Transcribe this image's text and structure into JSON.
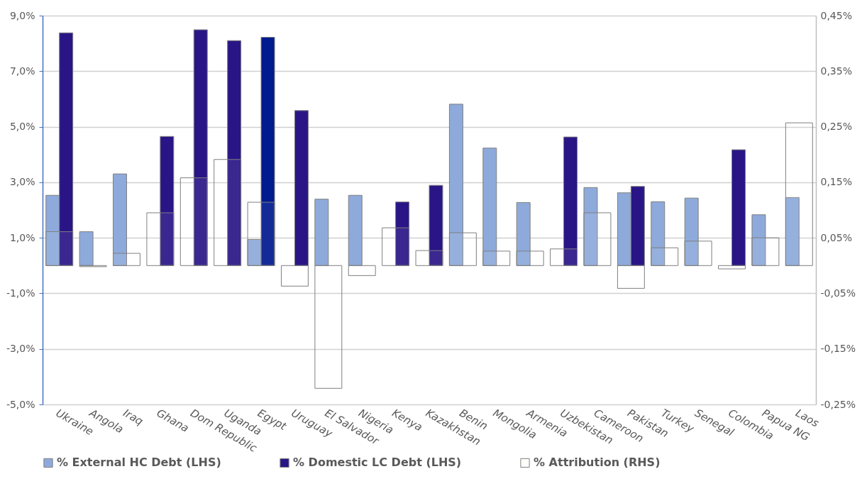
{
  "chart_data": {
    "type": "bar",
    "categories": [
      "Ukraine",
      "Angola",
      "Iraq",
      "Ghana",
      "Dom Republic",
      "Uganda",
      "Egypt",
      "Uruguay",
      "El Salvador",
      "Nigeria",
      "Kenya",
      "Kazakhstan",
      "Benin",
      "Mongolia",
      "Armenia",
      "Uzbekistan",
      "Cameroon",
      "Pakistan",
      "Turkey",
      "Senegal",
      "Colombia",
      "Papua NG",
      "Laos"
    ],
    "series": [
      {
        "name": "% External HC Debt (LHS)",
        "color": "#8eaadb",
        "values": [
          2.53,
          1.22,
          3.3,
          null,
          null,
          null,
          0.94,
          null,
          2.39,
          2.53,
          null,
          null,
          5.81,
          4.23,
          2.27,
          null,
          2.81,
          2.62,
          2.3,
          2.43,
          null,
          1.83,
          2.45
        ]
      },
      {
        "name": "% Domestic LC Debt (LHS)",
        "color": "#2a1587",
        "colors": [
          "#2a1587",
          "#2a1587",
          "#2a1587",
          "#2a1587",
          "#2a1587",
          "#2a1587",
          "#001a8f",
          "#2a1587",
          "#2a1587",
          "#2a1587",
          "#2a1587",
          "#2a1587",
          "#2a1587",
          "#2a1587",
          "#2a1587",
          "#2a1587",
          "#2a1587",
          "#2a1587",
          "#2a1587",
          "#2a1587",
          "#2a1587",
          "#2a1587",
          "#2a1587"
        ],
        "values": [
          8.38,
          null,
          null,
          4.65,
          8.49,
          8.1,
          8.22,
          5.58,
          null,
          null,
          2.29,
          2.89,
          null,
          null,
          null,
          4.63,
          null,
          2.85,
          null,
          null,
          4.17,
          null,
          null
        ]
      },
      {
        "name": "% Attribution (RHS)",
        "color": "#fffdfa",
        "axis": "y2",
        "values": [
          0.061,
          -0.002,
          0.022,
          0.095,
          0.158,
          0.191,
          0.114,
          -0.037,
          -0.221,
          -0.018,
          0.068,
          0.027,
          0.059,
          0.026,
          0.026,
          0.03,
          0.095,
          -0.041,
          0.032,
          0.044,
          -0.006,
          0.05,
          0.257
        ]
      }
    ],
    "ylim": [
      -5,
      9
    ],
    "yticks": [
      {
        "value": -5,
        "label": "-5,0%"
      },
      {
        "value": -3,
        "label": "-3,0%"
      },
      {
        "value": -1,
        "label": "-1,0%"
      },
      {
        "value": 1,
        "label": "1,0%"
      },
      {
        "value": 3,
        "label": "3,0%"
      },
      {
        "value": 5,
        "label": "5,0%"
      },
      {
        "value": 7,
        "label": "7,0%"
      },
      {
        "value": 9,
        "label": "9,0%"
      }
    ],
    "y2lim": [
      -0.25,
      0.45
    ],
    "y2ticks": [
      {
        "value": -0.25,
        "label": "-0,25%"
      },
      {
        "value": -0.15,
        "label": "-0,15%"
      },
      {
        "value": -0.05,
        "label": "-0,05%"
      },
      {
        "value": 0.05,
        "label": "0,05%"
      },
      {
        "value": 0.15,
        "label": "0,15%"
      },
      {
        "value": 0.25,
        "label": "0,25%"
      },
      {
        "value": 0.35,
        "label": "0,35%"
      },
      {
        "value": 0.45,
        "label": "0,45%"
      }
    ],
    "grid": "y",
    "legend": "bottom"
  }
}
